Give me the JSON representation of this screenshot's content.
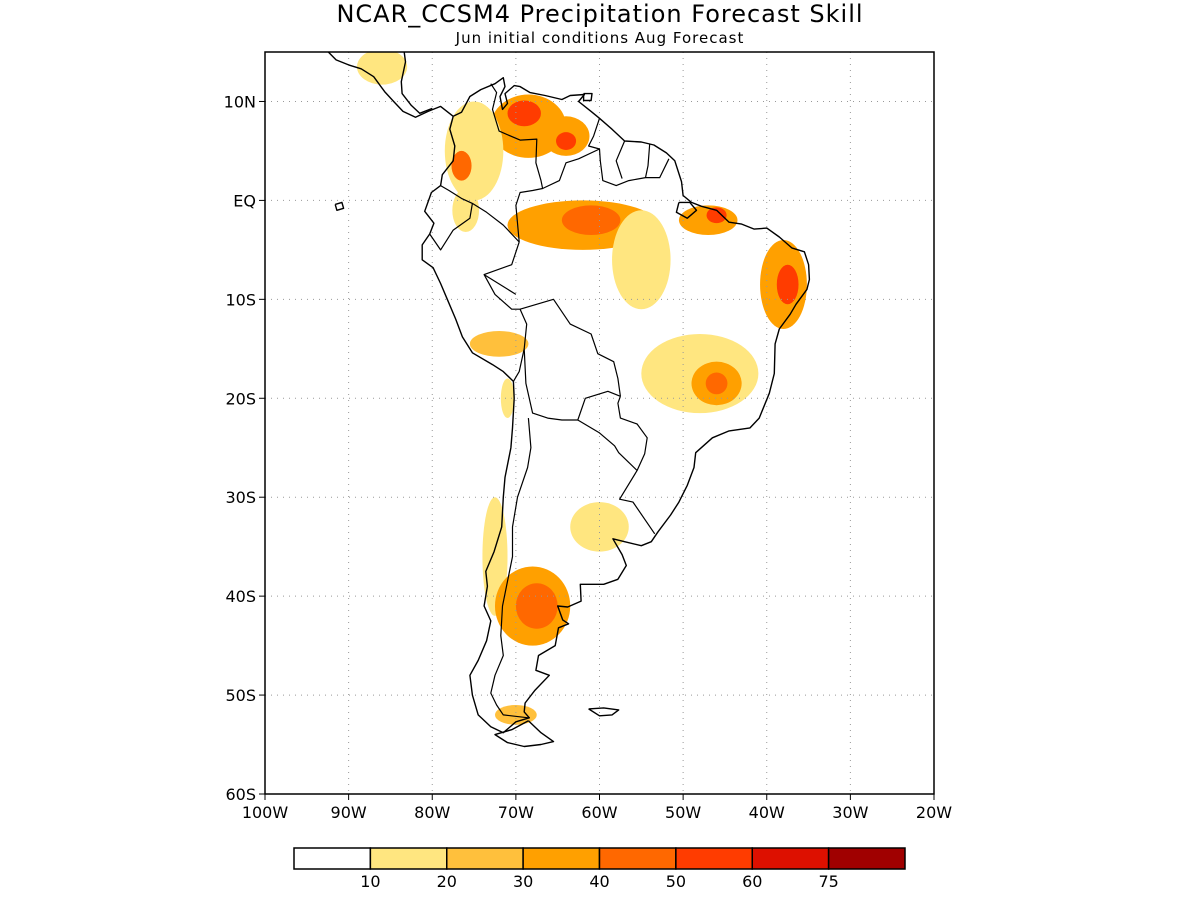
{
  "title": "NCAR_CCSM4 Precipitation Forecast Skill",
  "subtitle": "Jun initial conditions  Aug Forecast",
  "lat_axis": {
    "min": -60,
    "max": 15,
    "ticks": [
      {
        "value": 10,
        "label": "10N"
      },
      {
        "value": 0,
        "label": "EQ"
      },
      {
        "value": -10,
        "label": "10S"
      },
      {
        "value": -20,
        "label": "20S"
      },
      {
        "value": -30,
        "label": "30S"
      },
      {
        "value": -40,
        "label": "40S"
      },
      {
        "value": -50,
        "label": "50S"
      },
      {
        "value": -60,
        "label": "60S"
      }
    ]
  },
  "lon_axis": {
    "min": -100,
    "max": -20,
    "ticks": [
      {
        "value": -100,
        "label": "100W"
      },
      {
        "value": -90,
        "label": "90W"
      },
      {
        "value": -80,
        "label": "80W"
      },
      {
        "value": -70,
        "label": "70W"
      },
      {
        "value": -60,
        "label": "60W"
      },
      {
        "value": -50,
        "label": "50W"
      },
      {
        "value": -40,
        "label": "40W"
      },
      {
        "value": -30,
        "label": "30W"
      },
      {
        "value": -20,
        "label": "20W"
      }
    ]
  },
  "grid": "dotted",
  "colorbar": {
    "colors": [
      "#ffffff",
      "#ffe680",
      "#ffc03c",
      "#ffa000",
      "#ff6800",
      "#ff3c00",
      "#dd1000",
      "#a00000"
    ],
    "labels": [
      "10",
      "20",
      "30",
      "40",
      "50",
      "60",
      "75"
    ]
  },
  "skill_regions": [
    {
      "lon": -68.5,
      "lat": 7.5,
      "lon_r": 4.5,
      "lat_r": 3.2,
      "level": 3
    },
    {
      "lon": -69,
      "lat": 8.8,
      "lon_r": 2,
      "lat_r": 1.3,
      "level": 5
    },
    {
      "lon": -64,
      "lat": 6.5,
      "lon_r": 2.8,
      "lat_r": 2,
      "level": 3
    },
    {
      "lon": -64,
      "lat": 6,
      "lon_r": 1.2,
      "lat_r": 0.9,
      "level": 5
    },
    {
      "lon": -75,
      "lat": 5,
      "lon_r": 3.5,
      "lat_r": 5,
      "level": 1
    },
    {
      "lon": -76.5,
      "lat": 3.5,
      "lon_r": 1.2,
      "lat_r": 1.5,
      "level": 4
    },
    {
      "lon": -76,
      "lat": -1,
      "lon_r": 1.6,
      "lat_r": 2.2,
      "level": 1
    },
    {
      "lon": -62,
      "lat": -2.5,
      "lon_r": 9,
      "lat_r": 2.5,
      "level": 3
    },
    {
      "lon": -61,
      "lat": -2,
      "lon_r": 3.5,
      "lat_r": 1.5,
      "level": 4
    },
    {
      "lon": -55,
      "lat": -6,
      "lon_r": 3.5,
      "lat_r": 5,
      "level": 1
    },
    {
      "lon": -47,
      "lat": -2,
      "lon_r": 3.5,
      "lat_r": 1.5,
      "level": 3
    },
    {
      "lon": -46,
      "lat": -1.5,
      "lon_r": 1.2,
      "lat_r": 0.8,
      "level": 5
    },
    {
      "lon": -38,
      "lat": -8.5,
      "lon_r": 2.8,
      "lat_r": 4.5,
      "level": 3
    },
    {
      "lon": -37.5,
      "lat": -8.5,
      "lon_r": 1.3,
      "lat_r": 2,
      "level": 5
    },
    {
      "lon": -48,
      "lat": -17.5,
      "lon_r": 7,
      "lat_r": 4,
      "level": 1
    },
    {
      "lon": -46,
      "lat": -18.5,
      "lon_r": 3,
      "lat_r": 2.2,
      "level": 3
    },
    {
      "lon": -46,
      "lat": -18.5,
      "lon_r": 1.3,
      "lat_r": 1.1,
      "level": 4
    },
    {
      "lon": -72,
      "lat": -14.5,
      "lon_r": 3.5,
      "lat_r": 1.3,
      "level": 2
    },
    {
      "lon": -71,
      "lat": -20,
      "lon_r": 0.8,
      "lat_r": 2,
      "level": 1
    },
    {
      "lon": -60,
      "lat": -33,
      "lon_r": 3.5,
      "lat_r": 2.5,
      "level": 1
    },
    {
      "lon": -72.5,
      "lat": -36,
      "lon_r": 1.5,
      "lat_r": 6,
      "level": 1
    },
    {
      "lon": -68,
      "lat": -41,
      "lon_r": 4.5,
      "lat_r": 4,
      "level": 3
    },
    {
      "lon": -67.5,
      "lat": -41,
      "lon_r": 2.5,
      "lat_r": 2.3,
      "level": 4
    },
    {
      "lon": -70,
      "lat": -52,
      "lon_r": 2.5,
      "lat_r": 1,
      "level": 2
    },
    {
      "lon": -86,
      "lat": 13.5,
      "lon_r": 3,
      "lat_r": 1.8,
      "level": 1
    }
  ]
}
